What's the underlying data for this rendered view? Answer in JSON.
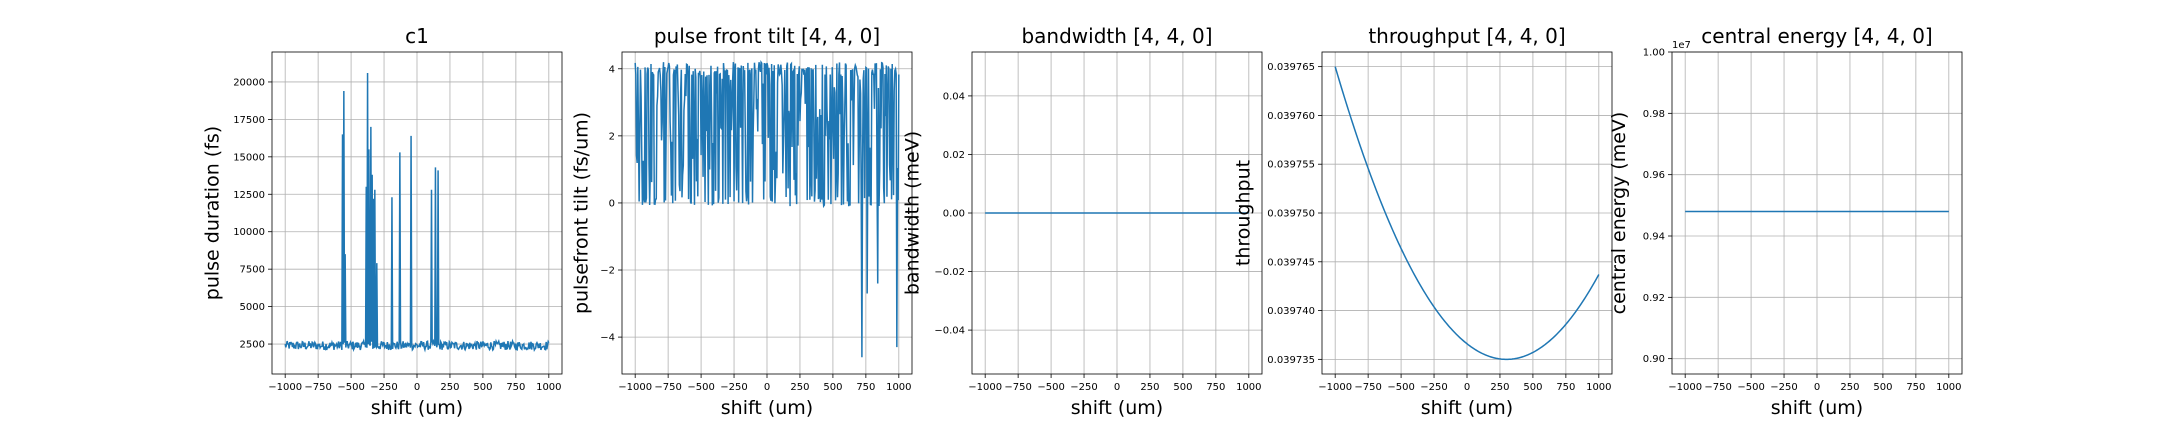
{
  "chart_data": [
    {
      "type": "line",
      "title": "c1",
      "xlabel": "shift (um)",
      "ylabel": "pulse duration (fs)",
      "xlim": [
        -1100,
        1100
      ],
      "ylim": [
        500,
        22000
      ],
      "xticks": [
        -1000,
        -750,
        -500,
        -250,
        0,
        250,
        500,
        750,
        1000
      ],
      "xtick_labels": [
        "−1000",
        "−750",
        "−500",
        "−250",
        "0",
        "250",
        "500",
        "750",
        "1000"
      ],
      "yticks": [
        2500,
        5000,
        7500,
        10000,
        12500,
        15000,
        17500,
        20000
      ],
      "ytick_labels": [
        "2500",
        "5000",
        "7500",
        "10000",
        "12500",
        "15000",
        "17500",
        "20000"
      ],
      "offset_text": "",
      "grid": true,
      "color": "#1f77b4",
      "pattern": "noisy",
      "n_points": 401,
      "base": 2400,
      "noise": 300,
      "spikes": [
        [
          -565,
          16500
        ],
        [
          -555,
          19400
        ],
        [
          -545,
          8500
        ],
        [
          -385,
          13000
        ],
        [
          -375,
          20600
        ],
        [
          -365,
          15500
        ],
        [
          -350,
          17000
        ],
        [
          -340,
          13800
        ],
        [
          -330,
          12200
        ],
        [
          -320,
          12800
        ],
        [
          -305,
          7900
        ],
        [
          -190,
          12300
        ],
        [
          -130,
          15300
        ],
        [
          -45,
          16400
        ],
        [
          110,
          12800
        ],
        [
          140,
          14300
        ],
        [
          160,
          14100
        ]
      ]
    },
    {
      "type": "line",
      "title": "pulse front tilt [4, 4, 0]",
      "xlabel": "shift (um)",
      "ylabel": "pulsefront tilt (fs/um)",
      "xlim": [
        -1100,
        1100
      ],
      "ylim": [
        -5.1,
        4.5
      ],
      "xticks": [
        -1000,
        -750,
        -500,
        -250,
        0,
        250,
        500,
        750,
        1000
      ],
      "xtick_labels": [
        "−1000",
        "−750",
        "−500",
        "−250",
        "0",
        "250",
        "500",
        "750",
        "1000"
      ],
      "yticks": [
        -4,
        -2,
        0,
        2,
        4
      ],
      "ytick_labels": [
        "−4",
        "−2",
        "0",
        "2",
        "4"
      ],
      "offset_text": "",
      "grid": true,
      "color": "#1f77b4",
      "pattern": "random",
      "n_points": 401,
      "range": [
        -0.1,
        4.2
      ],
      "spikes": [
        [
          720,
          -4.6
        ],
        [
          760,
          -2.7
        ],
        [
          840,
          -2.4
        ],
        [
          985,
          -4.3
        ]
      ]
    },
    {
      "type": "line",
      "title": "bandwidth [4, 4, 0]",
      "xlabel": "shift (um)",
      "ylabel": "bandwidth (meV)",
      "xlim": [
        -1100,
        1100
      ],
      "ylim": [
        -0.055,
        0.055
      ],
      "xticks": [
        -1000,
        -750,
        -500,
        -250,
        0,
        250,
        500,
        750,
        1000
      ],
      "xtick_labels": [
        "−1000",
        "−750",
        "−500",
        "−250",
        "0",
        "250",
        "500",
        "750",
        "1000"
      ],
      "yticks": [
        -0.04,
        -0.02,
        0.0,
        0.02,
        0.04
      ],
      "ytick_labels": [
        "−0.04",
        "−0.02",
        "0.00",
        "0.02",
        "0.04"
      ],
      "offset_text": "",
      "grid": true,
      "color": "#1f77b4",
      "pattern": "constant",
      "value": 0.0
    },
    {
      "type": "line",
      "title": "throughput [4, 4, 0]",
      "xlabel": "shift (um)",
      "ylabel": "throughput",
      "xlim": [
        -1100,
        1100
      ],
      "ylim": [
        0.0397335,
        0.0397665
      ],
      "xticks": [
        -1000,
        -750,
        -500,
        -250,
        0,
        250,
        500,
        750,
        1000
      ],
      "xtick_labels": [
        "−1000",
        "−750",
        "−500",
        "−250",
        "0",
        "250",
        "500",
        "750",
        "1000"
      ],
      "yticks": [
        0.039735,
        0.03974,
        0.039745,
        0.03975,
        0.039755,
        0.03976,
        0.039765
      ],
      "ytick_labels": [
        "0.039735",
        "0.039740",
        "0.039745",
        "0.039750",
        "0.039755",
        "0.039760",
        "0.039765"
      ],
      "offset_text": "",
      "grid": true,
      "color": "#1f77b4",
      "pattern": "parabola",
      "vertex_x": 300,
      "vertex_y": 0.039735,
      "start_y": 0.039765
    },
    {
      "type": "line",
      "title": "central energy [4, 4, 0]",
      "xlabel": "shift (um)",
      "ylabel": "central energy (meV)",
      "xlim": [
        -1100,
        1100
      ],
      "ylim": [
        0.895,
        1.0
      ],
      "xticks": [
        -1000,
        -750,
        -500,
        -250,
        0,
        250,
        500,
        750,
        1000
      ],
      "xtick_labels": [
        "−1000",
        "−750",
        "−500",
        "−250",
        "0",
        "250",
        "500",
        "750",
        "1000"
      ],
      "yticks": [
        0.9,
        0.92,
        0.94,
        0.96,
        0.98,
        1.0
      ],
      "ytick_labels": [
        "0.90",
        "0.92",
        "0.94",
        "0.96",
        "0.98",
        "1.00"
      ],
      "offset_text": "1e7",
      "grid": true,
      "color": "#1f77b4",
      "pattern": "constant",
      "value": 0.948
    }
  ]
}
